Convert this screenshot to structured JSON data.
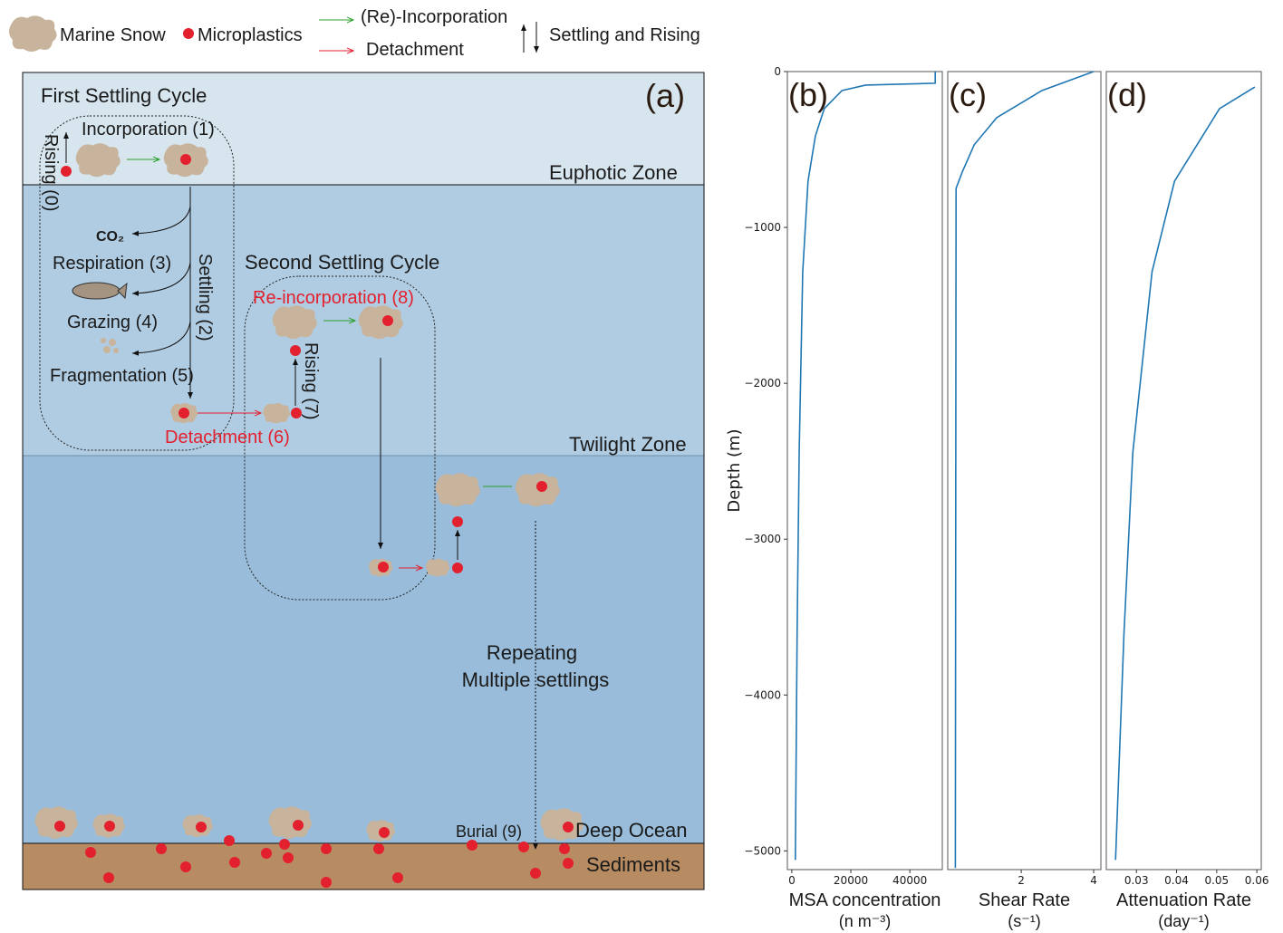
{
  "diagram": {
    "legend": {
      "marine_snow": "Marine Snow",
      "microplastics": "Microplastics",
      "incorporation": "(Re)-Incorporation",
      "detachment": "Detachment",
      "settling": "Settling and Rising"
    },
    "panel_label": "(a)",
    "first_cycle": "First Settling Cycle",
    "incorporation": "Incorporation (1)",
    "rising0": "Rising (0)",
    "euphotic": "Euphotic Zone",
    "co2": "CO₂",
    "respiration": "Respiration (3)",
    "settling": "Settling (2)",
    "grazing": "Grazing (4)",
    "fragmentation": "Fragmentation (5)",
    "second_cycle": "Second Settling Cycle",
    "reincorporation": "Re-incorporation (8)",
    "rising7": "Rising (7)",
    "detachment": "Detachment (6)",
    "twilight": "Twilight Zone",
    "repeating": [
      "Repeating",
      "Multiple settlings"
    ],
    "burial": "Burial (9)",
    "deep": "Deep Ocean",
    "sediments": "Sediments"
  },
  "chart_data": [
    {
      "type": "line",
      "panel_label": "(b)",
      "xlabel": "MSA concentration",
      "xunit": "(n m⁻³)",
      "ylabel": "Depth (m)",
      "xlim": [
        -1500,
        51000
      ],
      "xticks": [
        0,
        20000,
        40000
      ],
      "ylim": [
        -5120,
        0
      ],
      "yticks": [
        0,
        {
          "value": -1000,
          "label": "−1000"
        },
        {
          "value": -2000,
          "label": "−2000"
        },
        {
          "value": -3000,
          "label": "−3000"
        },
        {
          "value": -4000,
          "label": "−4000"
        },
        {
          "value": -5000,
          "label": "−5000"
        }
      ],
      "series": [
        {
          "color": "#1f77b4",
          "x": [
            48600,
            48600,
            25000,
            17000,
            11000,
            8000,
            5500,
            3700,
            2500,
            1800,
            1200
          ],
          "values": [
            0,
            -75,
            -87,
            -122,
            -238,
            -412,
            -703,
            -1283,
            -2445,
            -3606,
            -5058
          ]
        }
      ]
    },
    {
      "type": "line",
      "panel_label": "(c)",
      "xlabel": "Shear Rate",
      "xunit": "(s⁻¹)",
      "xlim": [
        -0.03,
        4.2
      ],
      "xticks": [
        2,
        4
      ],
      "ylim": [
        -5120,
        0
      ],
      "series": [
        {
          "color": "#1f77b4",
          "x": [
            4.0,
            2.57,
            1.32,
            0.7,
            0.37,
            0.2,
            0.18
          ],
          "values": [
            0,
            -122,
            -296,
            -470,
            -645,
            -749,
            -5110
          ]
        }
      ]
    },
    {
      "type": "line",
      "panel_label": "(d)",
      "xlabel": "Attenuation Rate",
      "xunit": "(day⁻¹)",
      "xlim": [
        0.0225,
        0.0611
      ],
      "xticks": [
        0.03,
        0.04,
        0.05,
        0.06
      ],
      "ylim": [
        -5120,
        0
      ],
      "series": [
        {
          "color": "#1f77b4",
          "x": [
            0.0595,
            0.0507,
            0.0395,
            0.0339,
            0.0291,
            0.0269,
            0.0248
          ],
          "values": [
            -99,
            -238,
            -703,
            -1283,
            -2445,
            -3606,
            -5058
          ]
        }
      ]
    }
  ]
}
